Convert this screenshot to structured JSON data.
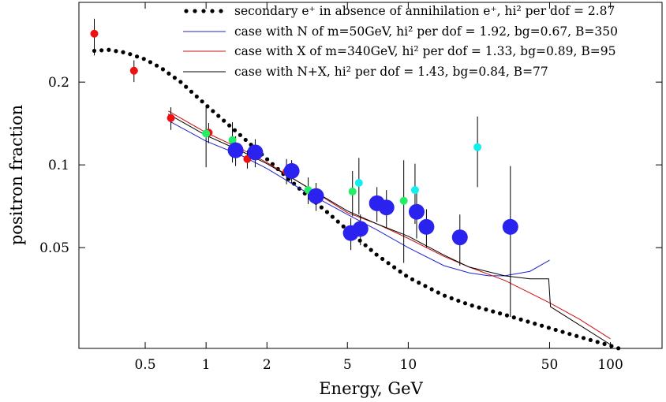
{
  "chart_data": {
    "type": "scatter",
    "xlabel": "Energy, GeV",
    "ylabel": "positron fraction",
    "xscale": "log",
    "yscale": "log",
    "xlim": [
      0.235,
      180
    ],
    "ylim": [
      0.0215,
      0.39
    ],
    "xticks": [
      {
        "v": 0.5,
        "label": "0.5"
      },
      {
        "v": 1,
        "label": "1"
      },
      {
        "v": 2,
        "label": "2"
      },
      {
        "v": 5,
        "label": "5"
      },
      {
        "v": 10,
        "label": "10"
      },
      {
        "v": 50,
        "label": "50"
      },
      {
        "v": 100,
        "label": "100"
      }
    ],
    "yticks": [
      {
        "v": 0.05,
        "label": "0.05"
      },
      {
        "v": 0.1,
        "label": "0.1"
      },
      {
        "v": 0.2,
        "label": "0.2"
      }
    ],
    "legend_position": "top-right",
    "series": [
      {
        "name": "secondary e⁺ in absence of annihilation e⁺, hi² per dof = 2.87",
        "kind": "dotted",
        "color": "#000000",
        "x": [
          0.28,
          0.33,
          0.4,
          0.5,
          0.6,
          0.75,
          1.0,
          1.5,
          2.0,
          3.0,
          4.0,
          5.0,
          7.0,
          10.0,
          15.0,
          20.0,
          30.0,
          50.0,
          70.0,
          100.0,
          110.0
        ],
        "y": [
          0.26,
          0.262,
          0.256,
          0.242,
          0.225,
          0.2,
          0.165,
          0.127,
          0.105,
          0.08,
          0.067,
          0.058,
          0.047,
          0.039,
          0.0335,
          0.031,
          0.0285,
          0.0255,
          0.0237,
          0.022,
          0.0215
        ]
      },
      {
        "name": "case with N of m=50GeV, hi² per dof = 1.92, bg=0.67, B=350",
        "kind": "line",
        "color": "#2222cc",
        "x": [
          0.65,
          1.0,
          1.5,
          2.0,
          3.0,
          5.0,
          7.0,
          10.0,
          15.0,
          20.0,
          25.0,
          30.0,
          40.0,
          50.0
        ],
        "y": [
          0.145,
          0.122,
          0.108,
          0.097,
          0.081,
          0.066,
          0.058,
          0.05,
          0.043,
          0.0405,
          0.0395,
          0.0395,
          0.041,
          0.045
        ]
      },
      {
        "name": "case with X of m=340GeV, hi² per dof = 1.33, bg=0.89, B=95",
        "kind": "line",
        "color": "#cc1111",
        "x": [
          0.65,
          1.0,
          1.5,
          2.0,
          3.0,
          5.0,
          7.0,
          10.0,
          15.0,
          20.0,
          30.0,
          50.0,
          70.0,
          100.0
        ],
        "y": [
          0.157,
          0.131,
          0.114,
          0.102,
          0.085,
          0.067,
          0.061,
          0.054,
          0.0465,
          0.0425,
          0.038,
          0.0315,
          0.0275,
          0.0233
        ]
      },
      {
        "name": "case with N+X, hi² per dof = 1.43, bg=0.84, B=77",
        "kind": "line",
        "color": "#000000",
        "x": [
          0.65,
          1.0,
          1.5,
          2.0,
          3.0,
          5.0,
          7.0,
          10.0,
          15.0,
          20.0,
          30.0,
          40.0,
          49.5,
          50.5,
          70.0,
          100.0
        ],
        "y": [
          0.153,
          0.128,
          0.112,
          0.101,
          0.085,
          0.068,
          0.061,
          0.055,
          0.047,
          0.0425,
          0.0395,
          0.0385,
          0.0385,
          0.0305,
          0.0262,
          0.0222
        ]
      }
    ],
    "data_points": [
      {
        "set": "red",
        "color": "#ee1111",
        "r": 5,
        "points": [
          {
            "x": 0.28,
            "y": 0.3,
            "lo": 0.25,
            "hi": 0.34
          },
          {
            "x": 0.44,
            "y": 0.22,
            "lo": 0.2,
            "hi": 0.24
          },
          {
            "x": 0.67,
            "y": 0.148,
            "lo": 0.134,
            "hi": 0.162
          },
          {
            "x": 1.03,
            "y": 0.131,
            "lo": 0.12,
            "hi": 0.142
          },
          {
            "x": 1.6,
            "y": 0.105,
            "lo": 0.097,
            "hi": 0.113
          },
          {
            "x": 2.5,
            "y": 0.0945,
            "lo": 0.085,
            "hi": 0.105
          }
        ]
      },
      {
        "set": "green",
        "color": "#22ee66",
        "r": 5,
        "points": [
          {
            "x": 1.0,
            "y": 0.13,
            "lo": 0.098,
            "hi": 0.162
          },
          {
            "x": 1.35,
            "y": 0.123,
            "lo": 0.102,
            "hi": 0.143
          },
          {
            "x": 3.2,
            "y": 0.081,
            "lo": 0.072,
            "hi": 0.09
          },
          {
            "x": 5.3,
            "y": 0.08,
            "lo": 0.065,
            "hi": 0.095
          },
          {
            "x": 9.5,
            "y": 0.074,
            "lo": 0.044,
            "hi": 0.104
          }
        ]
      },
      {
        "set": "cyan",
        "color": "#11eeee",
        "r": 5,
        "points": [
          {
            "x": 5.7,
            "y": 0.086,
            "lo": 0.066,
            "hi": 0.106
          },
          {
            "x": 10.8,
            "y": 0.081,
            "lo": 0.061,
            "hi": 0.101
          },
          {
            "x": 22.0,
            "y": 0.116,
            "lo": 0.083,
            "hi": 0.15
          }
        ]
      },
      {
        "set": "blue",
        "color": "#2a22ee",
        "r": 10,
        "points": [
          {
            "x": 1.4,
            "y": 0.113,
            "lo": 0.099,
            "hi": 0.127
          },
          {
            "x": 1.75,
            "y": 0.111,
            "lo": 0.098,
            "hi": 0.124
          },
          {
            "x": 2.65,
            "y": 0.095,
            "lo": 0.086,
            "hi": 0.104
          },
          {
            "x": 3.5,
            "y": 0.077,
            "lo": 0.068,
            "hi": 0.086
          },
          {
            "x": 5.2,
            "y": 0.0565,
            "lo": 0.049,
            "hi": 0.064
          },
          {
            "x": 5.8,
            "y": 0.0585,
            "lo": 0.051,
            "hi": 0.066
          },
          {
            "x": 7.0,
            "y": 0.0725,
            "lo": 0.062,
            "hi": 0.083
          },
          {
            "x": 7.8,
            "y": 0.07,
            "lo": 0.059,
            "hi": 0.081
          },
          {
            "x": 11.0,
            "y": 0.0675,
            "lo": 0.054,
            "hi": 0.081
          },
          {
            "x": 12.3,
            "y": 0.0595,
            "lo": 0.05,
            "hi": 0.069
          },
          {
            "x": 18.0,
            "y": 0.0545,
            "lo": 0.043,
            "hi": 0.066
          },
          {
            "x": 32.0,
            "y": 0.0595,
            "lo": 0.028,
            "hi": 0.099
          }
        ]
      }
    ]
  }
}
